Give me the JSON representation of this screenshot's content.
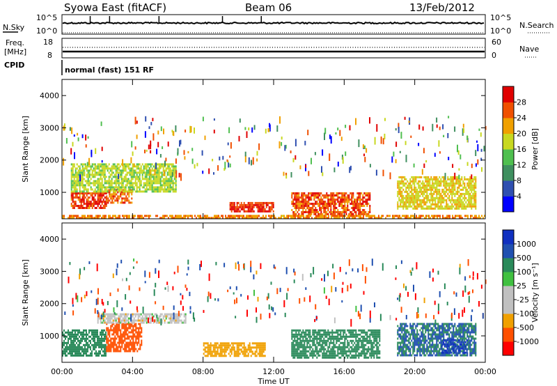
{
  "header": {
    "radar": "Syowa East (fitACF)",
    "beam": "Beam 06",
    "date": "13/Feb/2012"
  },
  "panels": {
    "nsky": {
      "label": "N.Sky",
      "left_ticks": [
        "10^5",
        "10^0"
      ],
      "right_label": "N.Search",
      "right_ticks": [
        "10^5",
        "10^0"
      ]
    },
    "freq": {
      "label_line1": "Freq.",
      "label_line2": "[MHz]",
      "left_ticks": [
        "18",
        "8"
      ],
      "right_label": "Nave",
      "right_ticks": [
        "60",
        "0"
      ]
    },
    "cpid": {
      "label": "CPID",
      "text": "normal (fast) 151 RF"
    },
    "power": {
      "ylabel": "Slant Range [km]",
      "yticks": [
        "4000",
        "3000",
        "2000",
        "1000"
      ],
      "colorbar_label": "Power [dB]",
      "colorbar_ticks": [
        "28",
        "24",
        "20",
        "16",
        "12",
        "8",
        "4"
      ]
    },
    "velocity": {
      "ylabel": "Slant Range [km]",
      "yticks": [
        "4000",
        "3000",
        "2000",
        "1000"
      ],
      "colorbar_label": "Velocity [m s⁻¹]",
      "colorbar_ticks": [
        "1000",
        "500",
        "100",
        "25",
        "-25",
        "-100",
        "-500",
        "-1000"
      ]
    }
  },
  "xaxis": {
    "label": "Time UT",
    "ticks": [
      "00:00",
      "04:00",
      "08:00",
      "12:00",
      "16:00",
      "20:00",
      "00:00"
    ]
  },
  "colors": {
    "power_scale": [
      "#0000ff",
      "#2f4fb0",
      "#3f8f5f",
      "#4fbf4f",
      "#c8d820",
      "#f0a000",
      "#f05000",
      "#e00000"
    ],
    "velocity_scale": [
      "#ff0000",
      "#ff5000",
      "#f0a000",
      "#c0c0c0",
      "#c0c0c0",
      "#40c040",
      "#2a8a5a",
      "#2050b0",
      "#1030c0"
    ]
  },
  "chart_data": [
    {
      "type": "heatmap",
      "title": "Power",
      "xlabel": "Time UT",
      "ylabel": "Slant Range [km]",
      "xlim": [
        0,
        24
      ],
      "ylim": [
        180,
        4500
      ],
      "colorbar": {
        "label": "Power [dB]",
        "range": [
          0,
          30
        ]
      },
      "regions": [
        {
          "t": [
            0.5,
            2.5
          ],
          "r": [
            500,
            1000
          ],
          "value": 26
        },
        {
          "t": [
            2.5,
            4.0
          ],
          "r": [
            700,
            1100
          ],
          "value": 24
        },
        {
          "t": [
            0.5,
            6.5
          ],
          "r": [
            1000,
            1900
          ],
          "value": 16
        },
        {
          "t": [
            9.5,
            12.0
          ],
          "r": [
            400,
            700
          ],
          "value": 27
        },
        {
          "t": [
            13.0,
            17.5
          ],
          "r": [
            350,
            1000
          ],
          "value": 25
        },
        {
          "t": [
            19.0,
            23.5
          ],
          "r": [
            500,
            1500
          ],
          "value": 18
        },
        {
          "t": [
            0.0,
            24.0
          ],
          "r": [
            180,
            300
          ],
          "value": 22
        }
      ]
    },
    {
      "type": "heatmap",
      "title": "Velocity",
      "xlabel": "Time UT",
      "ylabel": "Slant Range [km]",
      "xlim": [
        0,
        24
      ],
      "ylim": [
        180,
        4500
      ],
      "colorbar": {
        "label": "Velocity [m s⁻¹]",
        "range": [
          -1000,
          1000
        ]
      },
      "regions": [
        {
          "t": [
            0.0,
            2.5
          ],
          "r": [
            400,
            1200
          ],
          "value": 300
        },
        {
          "t": [
            2.5,
            4.5
          ],
          "r": [
            500,
            1400
          ],
          "value": -150
        },
        {
          "t": [
            2.0,
            7.0
          ],
          "r": [
            1400,
            1700
          ],
          "value": 0
        },
        {
          "t": [
            8.0,
            11.5
          ],
          "r": [
            400,
            800
          ],
          "value": -50
        },
        {
          "t": [
            13.0,
            18.0
          ],
          "r": [
            300,
            1200
          ],
          "value": 400
        },
        {
          "t": [
            19.0,
            23.5
          ],
          "r": [
            400,
            1400
          ],
          "value": 500
        },
        {
          "t": [
            21.5,
            23.0
          ],
          "r": [
            500,
            900
          ],
          "value": 1000
        }
      ]
    }
  ]
}
